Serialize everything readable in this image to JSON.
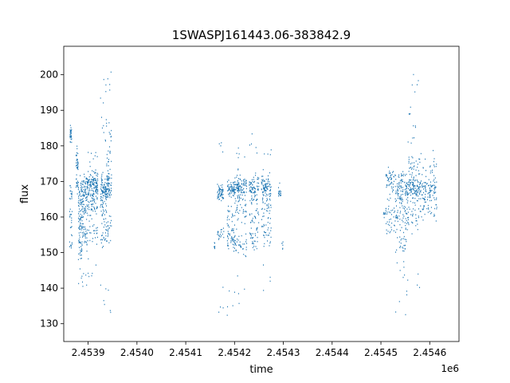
{
  "chart_data": {
    "type": "scatter",
    "title": "1SWASPJ161443.06-383842.9",
    "xlabel": "time",
    "ylabel": "flux",
    "x_offset_label": "1e6",
    "xlim": [
      2453850,
      2454660
    ],
    "ylim": [
      125,
      208
    ],
    "x_ticks": [
      2453900,
      2454000,
      2454100,
      2454200,
      2454300,
      2454400,
      2454500,
      2454600
    ],
    "x_tick_labels": [
      "2.4539",
      "2.4540",
      "2.4541",
      "2.4542",
      "2.4543",
      "2.4544",
      "2.4545",
      "2.4546"
    ],
    "y_ticks": [
      130,
      140,
      150,
      160,
      170,
      180,
      190,
      200
    ],
    "y_tick_labels": [
      "130",
      "140",
      "150",
      "160",
      "170",
      "180",
      "190",
      "200"
    ],
    "grid": false,
    "series_color": "#1f77b4",
    "segments": [
      {
        "x_range": [
          2453862,
          2453867
        ],
        "clusters": [
          {
            "y": 183,
            "spread": 2,
            "n": 30
          },
          {
            "y": 167,
            "spread": 2,
            "n": 15
          },
          {
            "y": 159,
            "spread": 3,
            "n": 15
          },
          {
            "y": 152,
            "spread": 2,
            "n": 10
          }
        ]
      },
      {
        "x_range": [
          2453875,
          2453880
        ],
        "clusters": [
          {
            "y": 176,
            "spread": 3,
            "n": 30
          },
          {
            "y": 169,
            "spread": 2,
            "n": 15
          }
        ]
      },
      {
        "x_range": [
          2453880,
          2453888
        ],
        "clusters": [
          {
            "y": 166,
            "spread": 4,
            "n": 50
          },
          {
            "y": 158,
            "spread": 4,
            "n": 40
          },
          {
            "y": 151,
            "spread": 3,
            "n": 25
          },
          {
            "y": 144,
            "spread": 2,
            "n": 4
          }
        ]
      },
      {
        "x_range": [
          2453888,
          2453898
        ],
        "clusters": [
          {
            "y": 168,
            "spread": 4,
            "n": 50
          },
          {
            "y": 162,
            "spread": 4,
            "n": 30
          },
          {
            "y": 155,
            "spread": 3,
            "n": 30
          },
          {
            "y": 142,
            "spread": 3,
            "n": 5
          }
        ]
      },
      {
        "x_range": [
          2453898,
          2453920
        ],
        "clusters": [
          {
            "y": 169,
            "spread": 3,
            "n": 140
          },
          {
            "y": 163,
            "spread": 3,
            "n": 50
          },
          {
            "y": 155,
            "spread": 3,
            "n": 25
          },
          {
            "y": 178,
            "spread": 3,
            "n": 8
          },
          {
            "y": 145,
            "spread": 4,
            "n": 6
          }
        ]
      },
      {
        "x_range": [
          2453925,
          2453938
        ],
        "clusters": [
          {
            "y": 168,
            "spread": 3,
            "n": 80
          },
          {
            "y": 162,
            "spread": 3,
            "n": 30
          },
          {
            "y": 155,
            "spread": 3,
            "n": 25
          },
          {
            "y": 186,
            "spread": 5,
            "n": 10
          },
          {
            "y": 195,
            "spread": 4,
            "n": 4
          },
          {
            "y": 138,
            "spread": 4,
            "n": 4
          }
        ]
      },
      {
        "x_range": [
          2453938,
          2453948
        ],
        "clusters": [
          {
            "y": 169,
            "spread": 3,
            "n": 60
          },
          {
            "y": 176,
            "spread": 3,
            "n": 15
          },
          {
            "y": 157,
            "spread": 3,
            "n": 20
          },
          {
            "y": 184,
            "spread": 3,
            "n": 8
          },
          {
            "y": 198,
            "spread": 3,
            "n": 4
          },
          {
            "y": 134,
            "spread": 4,
            "n": 3
          }
        ]
      },
      {
        "x_range": [
          2454158,
          2454160
        ],
        "clusters": [
          {
            "y": 152,
            "spread": 1,
            "n": 8
          }
        ]
      },
      {
        "x_range": [
          2454165,
          2454178
        ],
        "clusters": [
          {
            "y": 167,
            "spread": 2,
            "n": 60
          },
          {
            "y": 155,
            "spread": 2,
            "n": 20
          },
          {
            "y": 180,
            "spread": 3,
            "n": 4
          },
          {
            "y": 138,
            "spread": 5,
            "n": 4
          }
        ]
      },
      {
        "x_range": [
          2454185,
          2454200
        ],
        "clusters": [
          {
            "y": 168,
            "spread": 2,
            "n": 70
          },
          {
            "y": 160,
            "spread": 3,
            "n": 20
          },
          {
            "y": 154,
            "spread": 3,
            "n": 40
          },
          {
            "y": 135,
            "spread": 4,
            "n": 4
          }
        ]
      },
      {
        "x_range": [
          2454200,
          2454225
        ],
        "clusters": [
          {
            "y": 168,
            "spread": 3,
            "n": 110
          },
          {
            "y": 162,
            "spread": 3,
            "n": 30
          },
          {
            "y": 152,
            "spread": 3,
            "n": 40
          },
          {
            "y": 178,
            "spread": 3,
            "n": 6
          },
          {
            "y": 140,
            "spread": 5,
            "n": 5
          }
        ]
      },
      {
        "x_range": [
          2454230,
          2454250
        ],
        "clusters": [
          {
            "y": 168,
            "spread": 3,
            "n": 80
          },
          {
            "y": 161,
            "spread": 3,
            "n": 25
          },
          {
            "y": 154,
            "spread": 3,
            "n": 30
          },
          {
            "y": 182,
            "spread": 4,
            "n": 5
          }
        ]
      },
      {
        "x_range": [
          2454255,
          2454275
        ],
        "clusters": [
          {
            "y": 168,
            "spread": 3,
            "n": 90
          },
          {
            "y": 162,
            "spread": 3,
            "n": 30
          },
          {
            "y": 155,
            "spread": 3,
            "n": 30
          },
          {
            "y": 178,
            "spread": 3,
            "n": 5
          },
          {
            "y": 143,
            "spread": 3,
            "n": 4
          }
        ]
      },
      {
        "x_range": [
          2454290,
          2454295
        ],
        "clusters": [
          {
            "y": 167,
            "spread": 1.5,
            "n": 20
          }
        ]
      },
      {
        "x_range": [
          2454297,
          2454300
        ],
        "clusters": [
          {
            "y": 152,
            "spread": 1,
            "n": 6
          }
        ]
      },
      {
        "x_range": [
          2454505,
          2454510
        ],
        "clusters": [
          {
            "y": 161,
            "spread": 1,
            "n": 8
          }
        ]
      },
      {
        "x_range": [
          2454510,
          2454530
        ],
        "clusters": [
          {
            "y": 170,
            "spread": 3,
            "n": 50
          },
          {
            "y": 162,
            "spread": 3,
            "n": 25
          },
          {
            "y": 157,
            "spread": 2,
            "n": 15
          }
        ]
      },
      {
        "x_range": [
          2454530,
          2454555
        ],
        "clusters": [
          {
            "y": 168,
            "spread": 4,
            "n": 100
          },
          {
            "y": 160,
            "spread": 4,
            "n": 50
          },
          {
            "y": 152,
            "spread": 3,
            "n": 25
          },
          {
            "y": 145,
            "spread": 4,
            "n": 5
          },
          {
            "y": 135,
            "spread": 4,
            "n": 5
          }
        ]
      },
      {
        "x_range": [
          2454555,
          2454580
        ],
        "clusters": [
          {
            "y": 168,
            "spread": 3,
            "n": 110
          },
          {
            "y": 175,
            "spread": 3,
            "n": 30
          },
          {
            "y": 160,
            "spread": 3,
            "n": 30
          },
          {
            "y": 185,
            "spread": 4,
            "n": 10
          },
          {
            "y": 196,
            "spread": 4,
            "n": 6
          },
          {
            "y": 140,
            "spread": 4,
            "n": 4
          }
        ]
      },
      {
        "x_range": [
          2454580,
          2454615
        ],
        "clusters": [
          {
            "y": 168,
            "spread": 3,
            "n": 100
          },
          {
            "y": 162,
            "spread": 3,
            "n": 35
          },
          {
            "y": 175,
            "spread": 3,
            "n": 15
          }
        ]
      }
    ]
  }
}
